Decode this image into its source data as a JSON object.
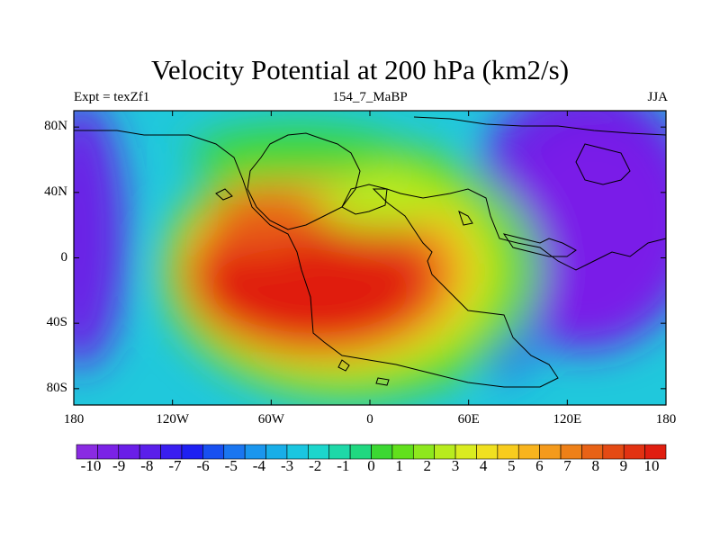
{
  "title": "Velocity Potential at 200 hPa (km2/s)",
  "left_label": "Expt = texZf1",
  "center_label": "154_7_MaBP",
  "right_label": "JJA",
  "map": {
    "lon_range": [
      -180,
      180
    ],
    "lat_range": [
      -90,
      90
    ],
    "lat_ticks": [
      {
        "value": 80,
        "label": "80N"
      },
      {
        "value": 40,
        "label": "40N"
      },
      {
        "value": 0,
        "label": "0"
      },
      {
        "value": -40,
        "label": "40S"
      },
      {
        "value": -80,
        "label": "80S"
      }
    ],
    "lon_ticks": [
      {
        "value": -180,
        "label": "180"
      },
      {
        "value": -120,
        "label": "120W"
      },
      {
        "value": -60,
        "label": "60W"
      },
      {
        "value": 0,
        "label": "0"
      },
      {
        "value": 60,
        "label": "60E"
      },
      {
        "value": 120,
        "label": "120E"
      },
      {
        "value": 180,
        "label": "180"
      }
    ],
    "field_centers": [
      {
        "name": "divergence-max",
        "lon": -20,
        "lat": -25,
        "value": 10
      },
      {
        "name": "convergence-min-east",
        "lon": 150,
        "lat": 20,
        "value": -10
      },
      {
        "name": "convergence-min-west",
        "lon": -170,
        "lat": 10,
        "value": -10
      }
    ]
  },
  "colorbar": {
    "labels": [
      "-10",
      "-9",
      "-8",
      "-7",
      "-6",
      "-5",
      "-4",
      "-3",
      "-2",
      "-1",
      "0",
      "1",
      "2",
      "3",
      "4",
      "5",
      "6",
      "7",
      "8",
      "9",
      "10"
    ],
    "colors": [
      "#8a2be2",
      "#7b22e6",
      "#6a1ee8",
      "#5a1fea",
      "#3a1ef0",
      "#1e20f2",
      "#1850f0",
      "#1a76f0",
      "#1a96ee",
      "#18aee8",
      "#1ac6e0",
      "#1cd6cc",
      "#1ed8a8",
      "#20d880",
      "#3cd832",
      "#62e01c",
      "#8ee81e",
      "#b8ec1e",
      "#daec20",
      "#f0e020",
      "#f8cc1e",
      "#f8b41e",
      "#f49a1c",
      "#ee8018",
      "#e86216",
      "#e44a14",
      "#e23212",
      "#e01e10"
    ]
  }
}
